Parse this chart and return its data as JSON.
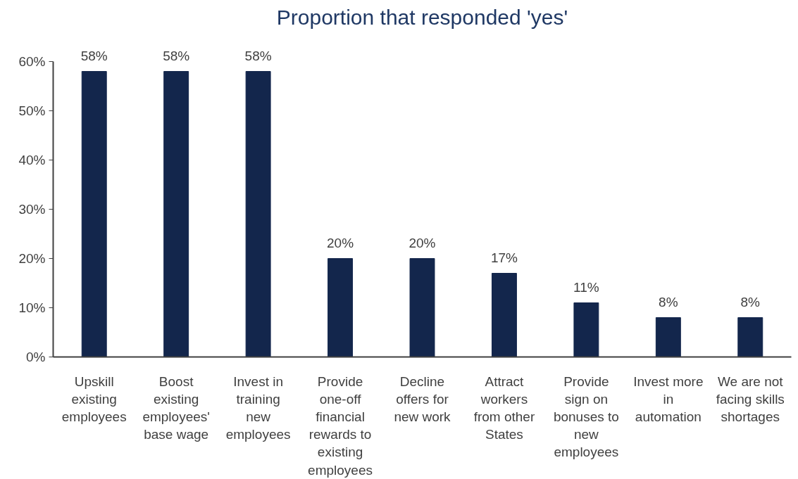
{
  "chart_data": {
    "type": "bar",
    "title": "Proportion that responded 'yes'",
    "categories": [
      "Upskill\nexisting\nemployees",
      "Boost\nexisting\nemployees'\nbase wage",
      "Invest in\ntraining\nnew\nemployees",
      "Provide\none-off\nfinancial\nrewards to\nexisting\nemployees",
      "Decline\noffers for\nnew work",
      "Attract\nworkers\nfrom other\nStates",
      "Provide\nsign on\nbonuses to\nnew\nemployees",
      "Invest more\nin\nautomation",
      "We are not\nfacing skills\nshortages"
    ],
    "values": [
      58,
      58,
      58,
      20,
      20,
      17,
      11,
      8,
      8
    ],
    "value_labels": [
      "58%",
      "58%",
      "58%",
      "20%",
      "20%",
      "17%",
      "11%",
      "8%",
      "8%"
    ],
    "color": "#13264c",
    "ylim": [
      0,
      60
    ],
    "yticks": [
      {
        "value": 0,
        "label": "0%"
      },
      {
        "value": 10,
        "label": "10%"
      },
      {
        "value": 20,
        "label": "20%"
      },
      {
        "value": 30,
        "label": "30%"
      },
      {
        "value": 40,
        "label": "40%"
      },
      {
        "value": 50,
        "label": "50%"
      },
      {
        "value": 60,
        "label": "60%"
      }
    ],
    "grid": false
  }
}
